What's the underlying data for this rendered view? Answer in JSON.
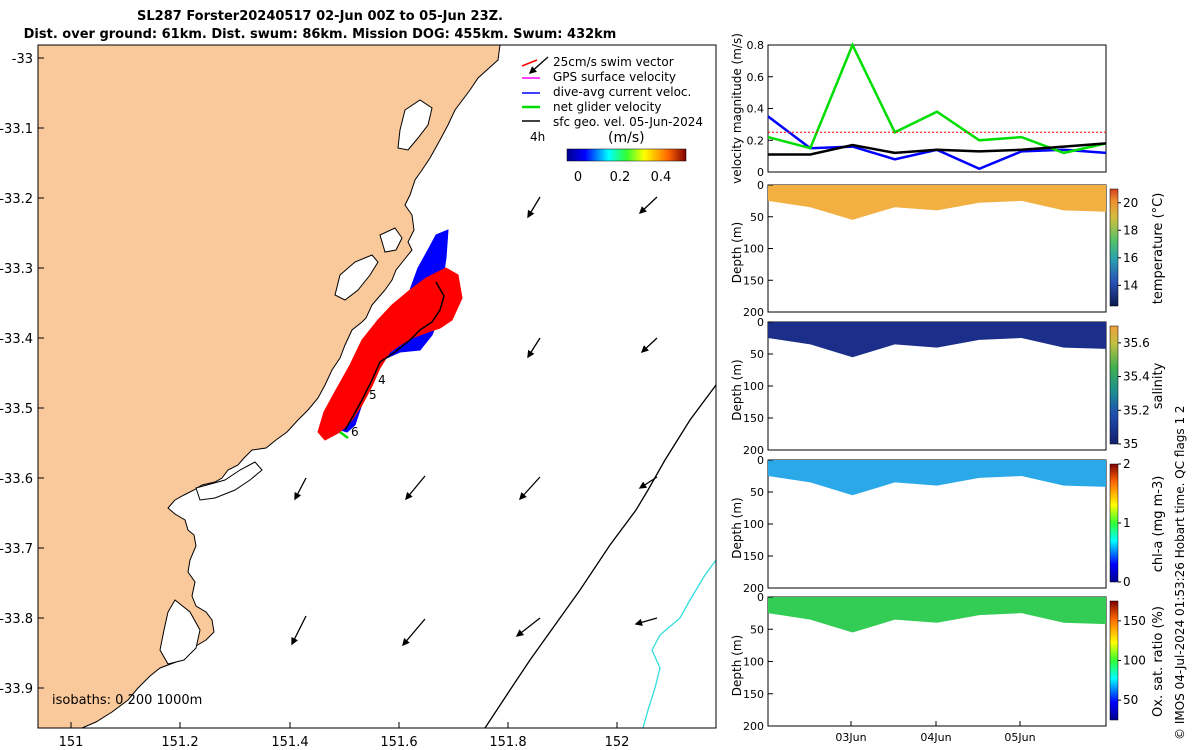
{
  "title_line1": "SL287 Forster20240517 02-Jun 00Z to 05-Jun 23Z.",
  "title_line2": "Dist. over ground: 61km. Dist. swum: 86km. Mission DOG: 455km. Swum: 432km",
  "copyright": "© IMOS 04-Jul-2024 01:53:26 Hobart time. QC flags 1  2",
  "map": {
    "lon_ticks": [
      "151",
      "151.2",
      "151.4",
      "151.6",
      "151.8",
      "152"
    ],
    "lat_ticks": [
      "-33",
      "-33.1",
      "-33.2",
      "-33.3",
      "-33.4",
      "-33.5",
      "-33.6",
      "-33.7",
      "-33.8",
      "-33.9"
    ],
    "isobaths_label": "isobaths: 0   200  1000m",
    "time_labels": [
      "4",
      "5",
      "6"
    ],
    "legend": {
      "items": [
        {
          "label": "25cm/s swim vector",
          "color": "#ff0000"
        },
        {
          "label": "GPS surface velocity",
          "color": "#ff00ff"
        },
        {
          "label": "dive-avg current veloc.",
          "color": "#0000ff"
        },
        {
          "label": "net glider velocity",
          "color": "#00dd00"
        },
        {
          "label": "sfc geo. vel. 05-Jun-2024",
          "color": "#000000"
        }
      ],
      "interval": "4h",
      "colorbar_label": "(m/s)",
      "colorbar_ticks": [
        "0",
        "0.2",
        "0.4"
      ]
    },
    "colors": {
      "land": "#f9c89b",
      "sea": "#ffffff",
      "track_red": "#ff0000",
      "track_blue": "#0000ff",
      "isobath_cyan": "#33dddd"
    }
  },
  "chart_data": [
    {
      "type": "line",
      "ylabel": "velocity magnitude (m/s)",
      "ylim": [
        0,
        0.8
      ],
      "yticks": [
        "0",
        "0.2",
        "0.4",
        "0.6",
        "0.8"
      ],
      "x": [
        "02-Jun 00Z",
        "02-Jun 12Z",
        "03-Jun 00Z",
        "03-Jun 12Z",
        "04-Jun 00Z",
        "04-Jun 12Z",
        "05-Jun 00Z",
        "05-Jun 12Z",
        "05-Jun 23Z"
      ],
      "series": [
        {
          "name": "dive-avg current veloc.",
          "color": "#0000ff",
          "values": [
            0.35,
            0.15,
            0.16,
            0.08,
            0.14,
            0.02,
            0.13,
            0.14,
            0.12
          ]
        },
        {
          "name": "net glider velocity",
          "color": "#00dd00",
          "values": [
            0.22,
            0.15,
            0.8,
            0.25,
            0.38,
            0.2,
            0.22,
            0.12,
            0.18
          ]
        },
        {
          "name": "25cm/s swim vector",
          "color": "#ff0000",
          "values": [
            0.25,
            0.25,
            0.25,
            0.25,
            0.25,
            0.25,
            0.25,
            0.25,
            0.25
          ]
        },
        {
          "name": "sfc geo. vel. 05-Jun-2024",
          "color": "#000000",
          "values": [
            0.11,
            0.11,
            0.17,
            0.12,
            0.14,
            0.13,
            0.14,
            0.16,
            0.18
          ]
        }
      ]
    },
    {
      "type": "heatmap",
      "variable": "temperature (°C)",
      "ylabel": "Depth (m)",
      "ylim": [
        200,
        0
      ],
      "yticks": [
        "0",
        "50",
        "100",
        "150",
        "200"
      ],
      "colorbar_ticks": [
        "14",
        "16",
        "18",
        "20"
      ],
      "clim": [
        12.5,
        21
      ],
      "bottom_depth_m": [
        25,
        35,
        55,
        35,
        40,
        28,
        25,
        40,
        42
      ]
    },
    {
      "type": "heatmap",
      "variable": "salinity",
      "ylabel": "Depth (m)",
      "ylim": [
        200,
        0
      ],
      "yticks": [
        "0",
        "50",
        "100",
        "150",
        "200"
      ],
      "colorbar_ticks": [
        "35",
        "35.2",
        "35.4",
        "35.6"
      ],
      "clim": [
        35,
        35.7
      ],
      "bottom_depth_m": [
        25,
        35,
        55,
        35,
        40,
        28,
        25,
        40,
        42
      ]
    },
    {
      "type": "heatmap",
      "variable": "chl-a (mg m-3)",
      "ylabel": "Depth (m)",
      "ylim": [
        200,
        0
      ],
      "yticks": [
        "0",
        "50",
        "100",
        "150",
        "200"
      ],
      "colorbar_ticks": [
        "0",
        "1",
        "2"
      ],
      "clim": [
        0,
        2
      ],
      "bottom_depth_m": [
        25,
        35,
        55,
        35,
        40,
        28,
        25,
        40,
        42
      ]
    },
    {
      "type": "heatmap",
      "variable": "Ox. sat. ratio (%)",
      "ylabel": "Depth (m)",
      "ylim": [
        200,
        0
      ],
      "yticks": [
        "0",
        "50",
        "100",
        "150",
        "200"
      ],
      "colorbar_ticks": [
        "50",
        "100",
        "150"
      ],
      "clim": [
        25,
        175
      ],
      "bottom_depth_m": [
        25,
        35,
        55,
        35,
        40,
        28,
        25,
        40,
        42
      ]
    }
  ],
  "time_axis_labels": [
    "03Jun",
    "04Jun",
    "05Jun"
  ]
}
